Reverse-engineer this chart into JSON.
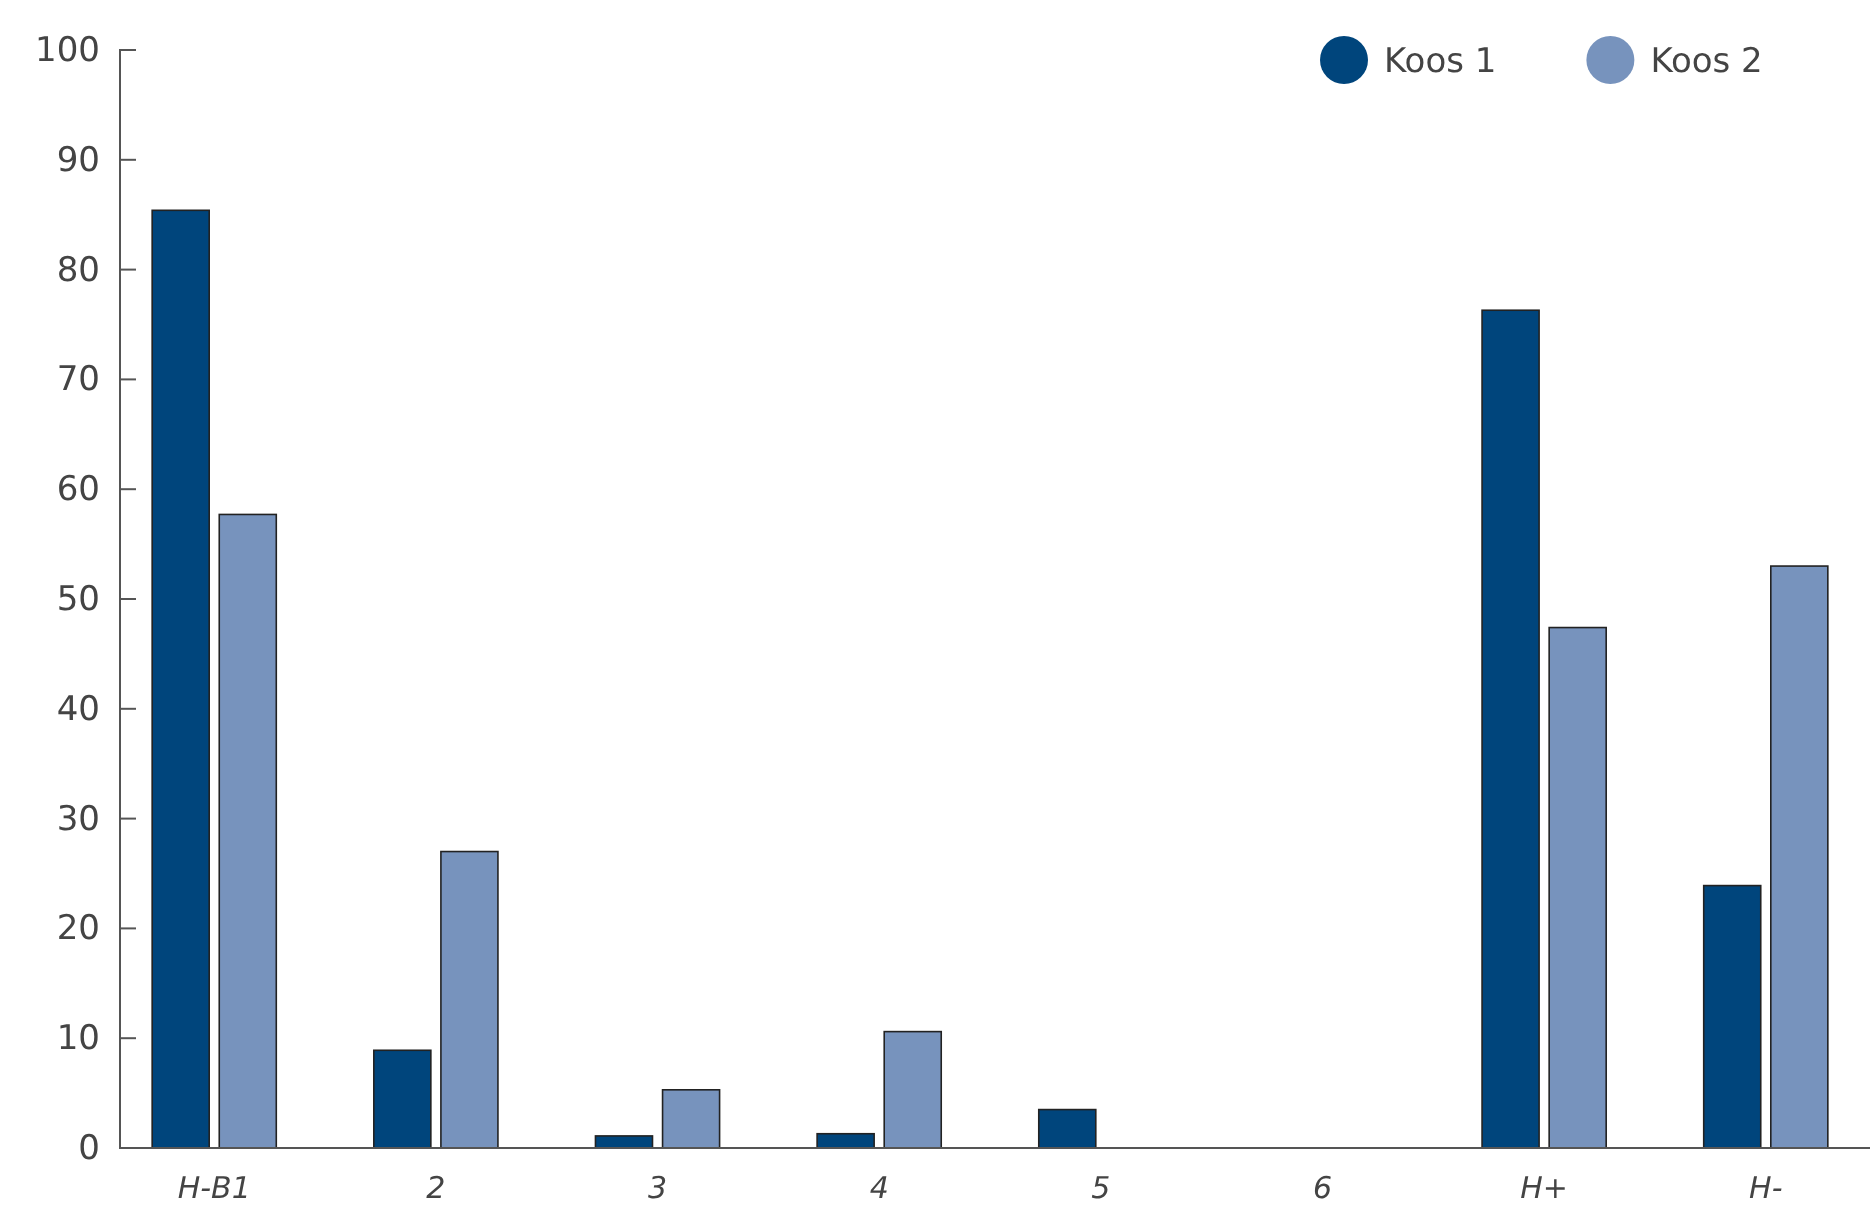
{
  "chart_data": {
    "type": "bar",
    "categories": [
      "H-B1",
      "2",
      "3",
      "4",
      "5",
      "6",
      "H+",
      "H-"
    ],
    "series": [
      {
        "name": "Koos 1",
        "color": "#00457c",
        "values": [
          85.4,
          8.9,
          1.1,
          1.3,
          3.5,
          0,
          76.3,
          23.9
        ]
      },
      {
        "name": "Koos 2",
        "color": "#7793bd",
        "values": [
          57.7,
          27,
          5.3,
          10.6,
          0,
          0,
          47.4,
          53
        ]
      }
    ],
    "ylim": [
      0,
      100
    ],
    "yticks": [
      0,
      10,
      20,
      30,
      40,
      50,
      60,
      70,
      80,
      90,
      100
    ],
    "grid": false,
    "legend": "top right"
  }
}
